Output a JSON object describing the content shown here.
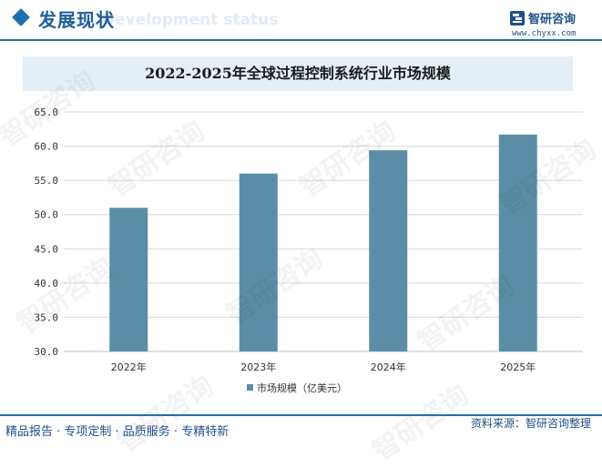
{
  "header": {
    "title": "发展现状",
    "subtitle_watermark": "Development status"
  },
  "logo": {
    "name": "智研咨询",
    "url": "www.chyxx.com"
  },
  "watermark_text": "智研咨询",
  "chart_data": {
    "type": "bar",
    "title": "2022-2025年全球过程控制系统行业市场规模",
    "categories": [
      "2022年",
      "2023年",
      "2024年",
      "2025年"
    ],
    "series": [
      {
        "name": "市场规模（亿美元）",
        "values": [
          51.0,
          56.0,
          59.4,
          61.7
        ]
      }
    ],
    "ylim": [
      30,
      65
    ],
    "yticks": [
      "30.0",
      "35.0",
      "40.0",
      "45.0",
      "50.0",
      "55.0",
      "60.0",
      "65.0"
    ],
    "grid": true,
    "legend_position": "bottom",
    "bar_color": "#5b8ea6"
  },
  "footer": {
    "left": "精品报告 · 专项定制 · 品质服务 · 专精特新",
    "right": "资料来源：智研咨询整理"
  }
}
